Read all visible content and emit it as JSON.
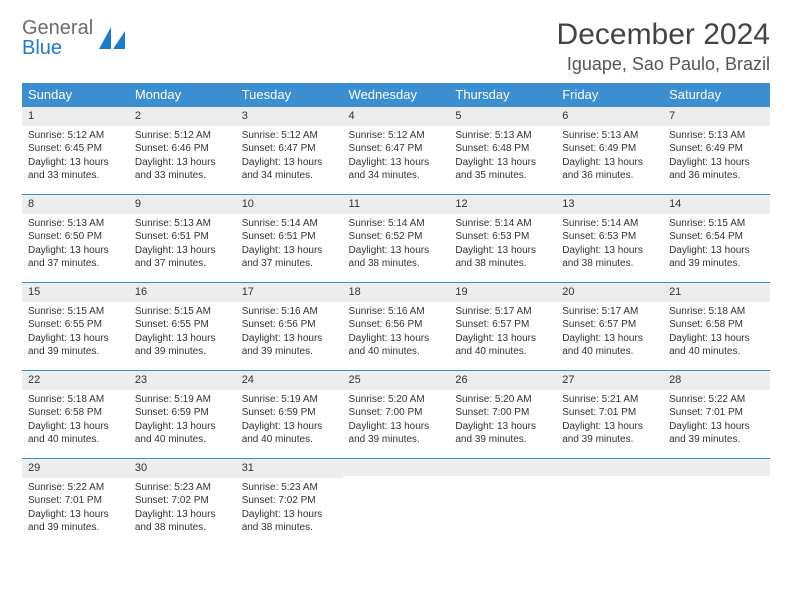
{
  "logo": {
    "line1": "General",
    "line2": "Blue",
    "color1": "#6b6b6b",
    "color2": "#1e7bc5"
  },
  "title": "December 2024",
  "location": "Iguape, Sao Paulo, Brazil",
  "header_bg": "#3b8ed0",
  "daynum_bg": "#ededed",
  "weekdays": [
    "Sunday",
    "Monday",
    "Tuesday",
    "Wednesday",
    "Thursday",
    "Friday",
    "Saturday"
  ],
  "days": [
    {
      "n": "1",
      "sunrise": "5:12 AM",
      "sunset": "6:45 PM",
      "dl": "13 hours and 33 minutes."
    },
    {
      "n": "2",
      "sunrise": "5:12 AM",
      "sunset": "6:46 PM",
      "dl": "13 hours and 33 minutes."
    },
    {
      "n": "3",
      "sunrise": "5:12 AM",
      "sunset": "6:47 PM",
      "dl": "13 hours and 34 minutes."
    },
    {
      "n": "4",
      "sunrise": "5:12 AM",
      "sunset": "6:47 PM",
      "dl": "13 hours and 34 minutes."
    },
    {
      "n": "5",
      "sunrise": "5:13 AM",
      "sunset": "6:48 PM",
      "dl": "13 hours and 35 minutes."
    },
    {
      "n": "6",
      "sunrise": "5:13 AM",
      "sunset": "6:49 PM",
      "dl": "13 hours and 36 minutes."
    },
    {
      "n": "7",
      "sunrise": "5:13 AM",
      "sunset": "6:49 PM",
      "dl": "13 hours and 36 minutes."
    },
    {
      "n": "8",
      "sunrise": "5:13 AM",
      "sunset": "6:50 PM",
      "dl": "13 hours and 37 minutes."
    },
    {
      "n": "9",
      "sunrise": "5:13 AM",
      "sunset": "6:51 PM",
      "dl": "13 hours and 37 minutes."
    },
    {
      "n": "10",
      "sunrise": "5:14 AM",
      "sunset": "6:51 PM",
      "dl": "13 hours and 37 minutes."
    },
    {
      "n": "11",
      "sunrise": "5:14 AM",
      "sunset": "6:52 PM",
      "dl": "13 hours and 38 minutes."
    },
    {
      "n": "12",
      "sunrise": "5:14 AM",
      "sunset": "6:53 PM",
      "dl": "13 hours and 38 minutes."
    },
    {
      "n": "13",
      "sunrise": "5:14 AM",
      "sunset": "6:53 PM",
      "dl": "13 hours and 38 minutes."
    },
    {
      "n": "14",
      "sunrise": "5:15 AM",
      "sunset": "6:54 PM",
      "dl": "13 hours and 39 minutes."
    },
    {
      "n": "15",
      "sunrise": "5:15 AM",
      "sunset": "6:55 PM",
      "dl": "13 hours and 39 minutes."
    },
    {
      "n": "16",
      "sunrise": "5:15 AM",
      "sunset": "6:55 PM",
      "dl": "13 hours and 39 minutes."
    },
    {
      "n": "17",
      "sunrise": "5:16 AM",
      "sunset": "6:56 PM",
      "dl": "13 hours and 39 minutes."
    },
    {
      "n": "18",
      "sunrise": "5:16 AM",
      "sunset": "6:56 PM",
      "dl": "13 hours and 40 minutes."
    },
    {
      "n": "19",
      "sunrise": "5:17 AM",
      "sunset": "6:57 PM",
      "dl": "13 hours and 40 minutes."
    },
    {
      "n": "20",
      "sunrise": "5:17 AM",
      "sunset": "6:57 PM",
      "dl": "13 hours and 40 minutes."
    },
    {
      "n": "21",
      "sunrise": "5:18 AM",
      "sunset": "6:58 PM",
      "dl": "13 hours and 40 minutes."
    },
    {
      "n": "22",
      "sunrise": "5:18 AM",
      "sunset": "6:58 PM",
      "dl": "13 hours and 40 minutes."
    },
    {
      "n": "23",
      "sunrise": "5:19 AM",
      "sunset": "6:59 PM",
      "dl": "13 hours and 40 minutes."
    },
    {
      "n": "24",
      "sunrise": "5:19 AM",
      "sunset": "6:59 PM",
      "dl": "13 hours and 40 minutes."
    },
    {
      "n": "25",
      "sunrise": "5:20 AM",
      "sunset": "7:00 PM",
      "dl": "13 hours and 39 minutes."
    },
    {
      "n": "26",
      "sunrise": "5:20 AM",
      "sunset": "7:00 PM",
      "dl": "13 hours and 39 minutes."
    },
    {
      "n": "27",
      "sunrise": "5:21 AM",
      "sunset": "7:01 PM",
      "dl": "13 hours and 39 minutes."
    },
    {
      "n": "28",
      "sunrise": "5:22 AM",
      "sunset": "7:01 PM",
      "dl": "13 hours and 39 minutes."
    },
    {
      "n": "29",
      "sunrise": "5:22 AM",
      "sunset": "7:01 PM",
      "dl": "13 hours and 39 minutes."
    },
    {
      "n": "30",
      "sunrise": "5:23 AM",
      "sunset": "7:02 PM",
      "dl": "13 hours and 38 minutes."
    },
    {
      "n": "31",
      "sunrise": "5:23 AM",
      "sunset": "7:02 PM",
      "dl": "13 hours and 38 minutes."
    }
  ],
  "labels": {
    "sunrise": "Sunrise:",
    "sunset": "Sunset:",
    "daylight": "Daylight:"
  },
  "start_weekday": 0,
  "total_cells": 35
}
